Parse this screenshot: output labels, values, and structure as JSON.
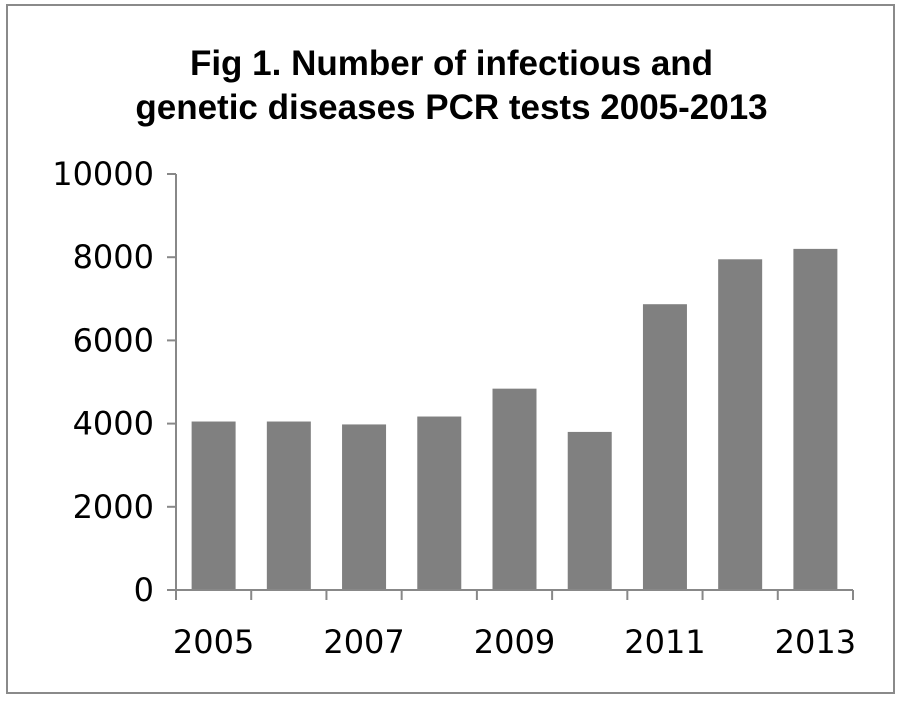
{
  "chart_data": {
    "type": "bar",
    "title": "Fig 1. Number of infectious and\ngenetic diseases PCR tests 2005-2013",
    "categories": [
      "2005",
      "2006",
      "2007",
      "2008",
      "2009",
      "2010",
      "2011",
      "2012",
      "2013"
    ],
    "values": [
      4050,
      4050,
      3980,
      4170,
      4840,
      3800,
      6870,
      7950,
      8200
    ],
    "x_tick_labels": [
      "2005",
      "",
      "2007",
      "",
      "2009",
      "",
      "2011",
      "",
      "2013"
    ],
    "y_ticks": [
      0,
      2000,
      4000,
      6000,
      8000,
      10000
    ],
    "ylim": [
      0,
      10000
    ],
    "xlabel": "",
    "ylabel": "",
    "grid": false,
    "legend": "none",
    "bar_color": "#808080"
  }
}
